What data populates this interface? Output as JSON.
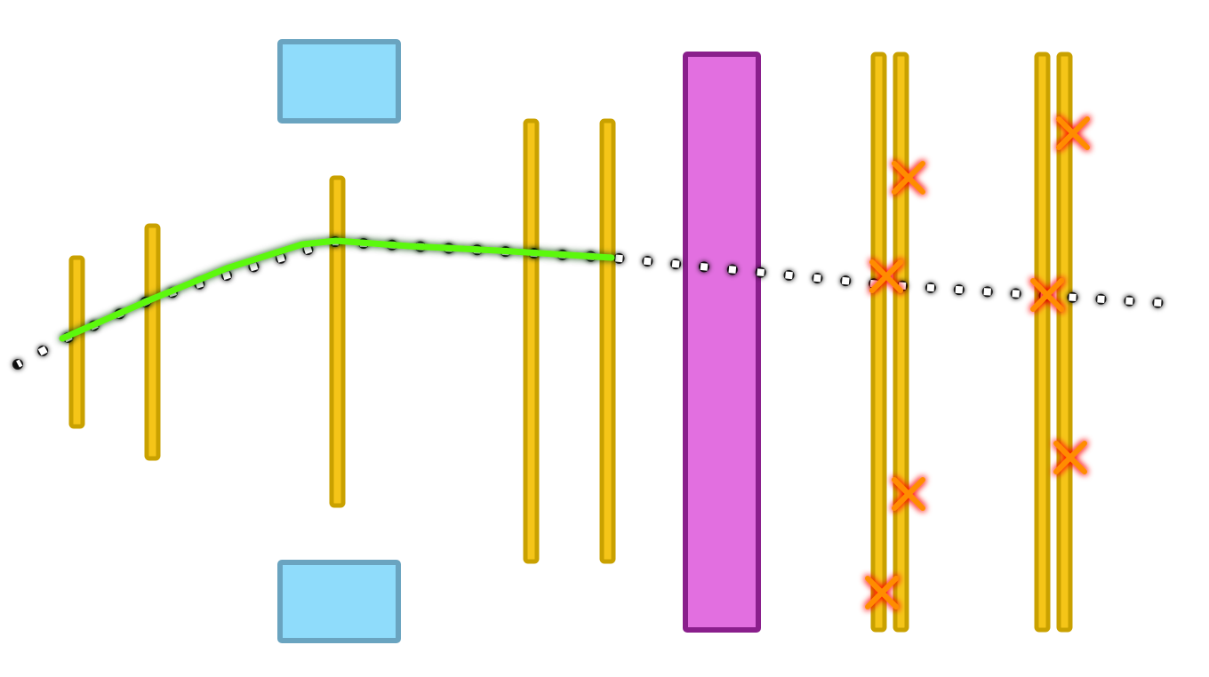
{
  "colors": {
    "background": "#ffffff",
    "tracking_plane_fill": "#f5c518",
    "tracking_plane_stroke": "#c9a100",
    "magnet_fill": "#8fdcfb",
    "magnet_stroke": "#6aa4c0",
    "absorber_fill": "#e26fe0",
    "absorber_stroke": "#8a1f8c",
    "fitted_track": "#5cf80a",
    "fitted_track_glow": "#1f7a00",
    "extrapolation_dot": "#ffffff",
    "extrapolation_outline": "#000000",
    "hit_marker": "#ff8c00",
    "hit_marker_glow": "#ff0000"
  },
  "legend_icons": {
    "tracking_plane": "vertical-detector-plane",
    "magnet": "magnet-block",
    "absorber": "absorber-wall",
    "fitted_track": "solid-track-line",
    "extrapolated_track": "dotted-track-line",
    "hit": "cross-hit-marker"
  }
}
